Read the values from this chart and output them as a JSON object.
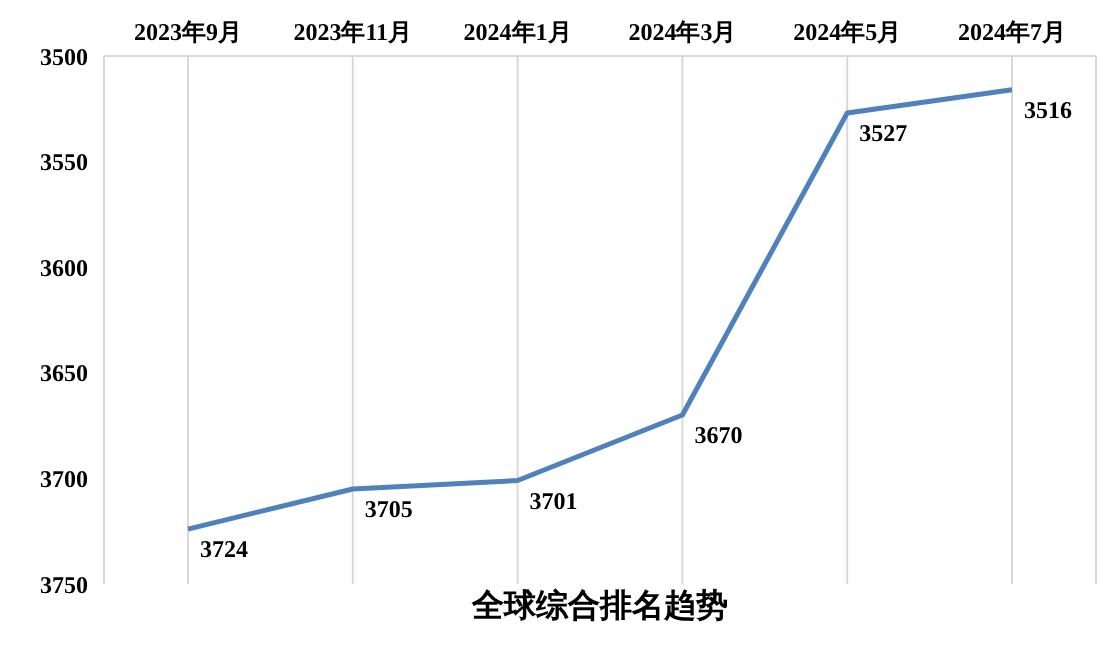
{
  "chart_data": {
    "type": "line",
    "title": "全球综合排名趋势",
    "categories": [
      "2023年9月",
      "2023年11月",
      "2024年1月",
      "2024年3月",
      "2024年5月",
      "2024年7月"
    ],
    "series": [
      {
        "color": "#4f81bd",
        "values": [
          3724,
          3705,
          3701,
          3670,
          3527,
          3516
        ]
      }
    ],
    "ylim": [
      3750,
      3500
    ],
    "yticks": [
      3500,
      3550,
      3600,
      3650,
      3700,
      3750
    ],
    "grid": "x",
    "marker": "none",
    "line_style": "solid",
    "data_labels": true,
    "legend": false
  }
}
